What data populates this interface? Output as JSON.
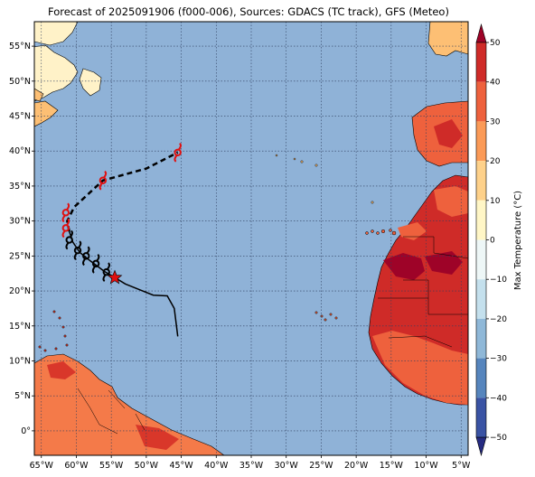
{
  "title": "Forecast of 2025091906 (f000-006), Sources: GDACS (TC track), GFS (Meteo)",
  "map": {
    "lon_min": -66,
    "lon_max": -4,
    "lat_min": -3.5,
    "lat_max": 58.5,
    "x_ticks": [
      {
        "lon": -65,
        "label": "65°W"
      },
      {
        "lon": -60,
        "label": "60°W"
      },
      {
        "lon": -55,
        "label": "55°W"
      },
      {
        "lon": -50,
        "label": "50°W"
      },
      {
        "lon": -45,
        "label": "45°W"
      },
      {
        "lon": -40,
        "label": "40°W"
      },
      {
        "lon": -35,
        "label": "35°W"
      },
      {
        "lon": -30,
        "label": "30°W"
      },
      {
        "lon": -25,
        "label": "25°W"
      },
      {
        "lon": -20,
        "label": "20°W"
      },
      {
        "lon": -15,
        "label": "15°W"
      },
      {
        "lon": -10,
        "label": "10°W"
      },
      {
        "lon": -5,
        "label": "5°W"
      }
    ],
    "y_ticks": [
      {
        "lat": 55,
        "label": "55°N"
      },
      {
        "lat": 50,
        "label": "50°N"
      },
      {
        "lat": 45,
        "label": "45°N"
      },
      {
        "lat": 40,
        "label": "40°N"
      },
      {
        "lat": 35,
        "label": "35°N"
      },
      {
        "lat": 30,
        "label": "30°N"
      },
      {
        "lat": 25,
        "label": "25°N"
      },
      {
        "lat": 20,
        "label": "20°N"
      },
      {
        "lat": 15,
        "label": "15°N"
      },
      {
        "lat": 10,
        "label": "10°N"
      },
      {
        "lat": 5,
        "label": "5°N"
      },
      {
        "lat": 0,
        "label": "0°"
      }
    ],
    "ocean_color": "#8fb2d7",
    "grid_color": "#2f3f5f"
  },
  "track": {
    "observed": [
      [
        -45.5,
        13.5
      ],
      [
        -46,
        17.5
      ],
      [
        -47,
        19.3
      ],
      [
        -49,
        19.4
      ],
      [
        -51,
        20.2
      ],
      [
        -53,
        21
      ],
      [
        -54.3,
        21.8
      ],
      [
        -56,
        22.8
      ],
      [
        -58,
        24.3
      ],
      [
        -59.5,
        25.5
      ],
      [
        -60.5,
        27
      ],
      [
        -61,
        28.5
      ]
    ],
    "forecast": [
      [
        -61,
        28.5
      ],
      [
        -61.3,
        30
      ],
      [
        -60.3,
        32
      ],
      [
        -56.2,
        35.8
      ],
      [
        -50,
        37.5
      ],
      [
        -45.5,
        39.8
      ]
    ],
    "current_position": [
      -54.5,
      21.9
    ],
    "symbols_black": [
      [
        -55.7,
        22.7
      ],
      [
        -57.2,
        23.9
      ],
      [
        -58.6,
        25
      ],
      [
        -59.8,
        25.8
      ],
      [
        -61,
        27.3
      ]
    ],
    "symbols_red": [
      [
        -61.5,
        29
      ],
      [
        -61.5,
        31.2
      ],
      [
        -56.2,
        35.8
      ],
      [
        -45.5,
        39.8
      ]
    ],
    "track_color": "#000000",
    "forecast_symbol_color": "#e01010",
    "current_marker_color": "#e01010"
  },
  "colorbar": {
    "label": "Max Temperature (°C)",
    "min": -50,
    "max": 50,
    "step": 10,
    "tick_labels": [
      "50",
      "40",
      "30",
      "20",
      "10",
      "0",
      "−10",
      "−20",
      "−30",
      "−40",
      "−50"
    ],
    "colors": [
      "#262b82",
      "#3a53a4",
      "#5685bd",
      "#8fb8d8",
      "#c4e0ed",
      "#eef7f7",
      "#fff6c6",
      "#fed18a",
      "#fb9a57",
      "#ee613d",
      "#cf2b28",
      "#9e0328"
    ]
  },
  "land_colors": {
    "cold": "#fff2c8",
    "cool": "#fdbf74",
    "warm": "#f47a49",
    "hot": "#d9372a",
    "very_hot": "#b41b26"
  }
}
